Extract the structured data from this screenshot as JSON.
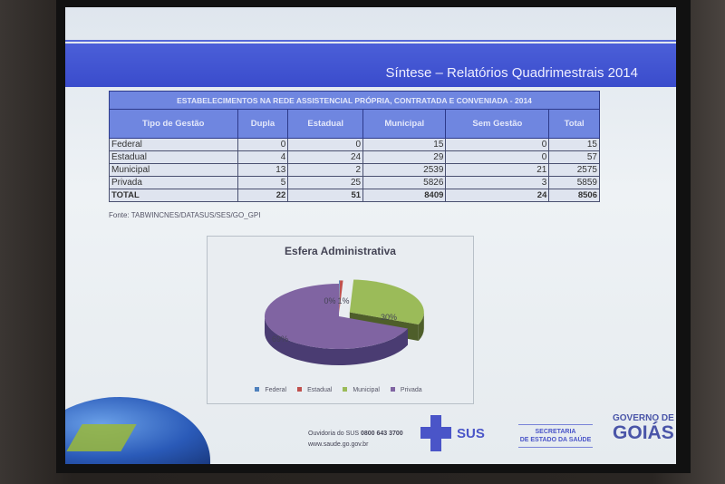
{
  "slide": {
    "title": "Síntese – Relatórios Quadrimestrais 2014"
  },
  "table": {
    "caption": "ESTABELECIMENTOS NA REDE ASSISTENCIAL PRÓPRIA, CONTRATADA E CONVENIADA - 2014",
    "headers": [
      "Tipo de Gestão",
      "Dupla",
      "Estadual",
      "Municipal",
      "Sem Gestão",
      "Total"
    ],
    "rows": [
      [
        "Federal",
        "0",
        "0",
        "15",
        "0",
        "15"
      ],
      [
        "Estadual",
        "4",
        "24",
        "29",
        "0",
        "57"
      ],
      [
        "Municipal",
        "13",
        "2",
        "2539",
        "21",
        "2575"
      ],
      [
        "Privada",
        "5",
        "25",
        "5826",
        "3",
        "5859"
      ],
      [
        "TOTAL",
        "22",
        "51",
        "8409",
        "24",
        "8506"
      ]
    ]
  },
  "source": "Fonte: TABWINCNES/DATASUS/SES/GO_GPI",
  "chart_data": {
    "type": "pie",
    "title": "Esfera Administrativa",
    "style": "3d-exploded",
    "legend_position": "bottom",
    "categories": [
      "Federal",
      "Estadual",
      "Municipal",
      "Privada"
    ],
    "values": [
      15,
      57,
      2575,
      5859
    ],
    "labels": [
      "0%",
      "1%",
      "30%",
      "69%"
    ],
    "colors": [
      "#4f81bd",
      "#c0504d",
      "#9bbb59",
      "#8064a2"
    ]
  },
  "footer": {
    "ouvidoria": "Ouvidoria do SUS",
    "phone": "0800 643 3700",
    "site": "www.saude.go.gov.br",
    "sus": "SUS",
    "secretaria_1": "SECRETARIA",
    "secretaria_2": "DE ESTADO DA SAÚDE",
    "governo_1": "GOVERNO DE",
    "governo_2": "GOIÁS"
  }
}
